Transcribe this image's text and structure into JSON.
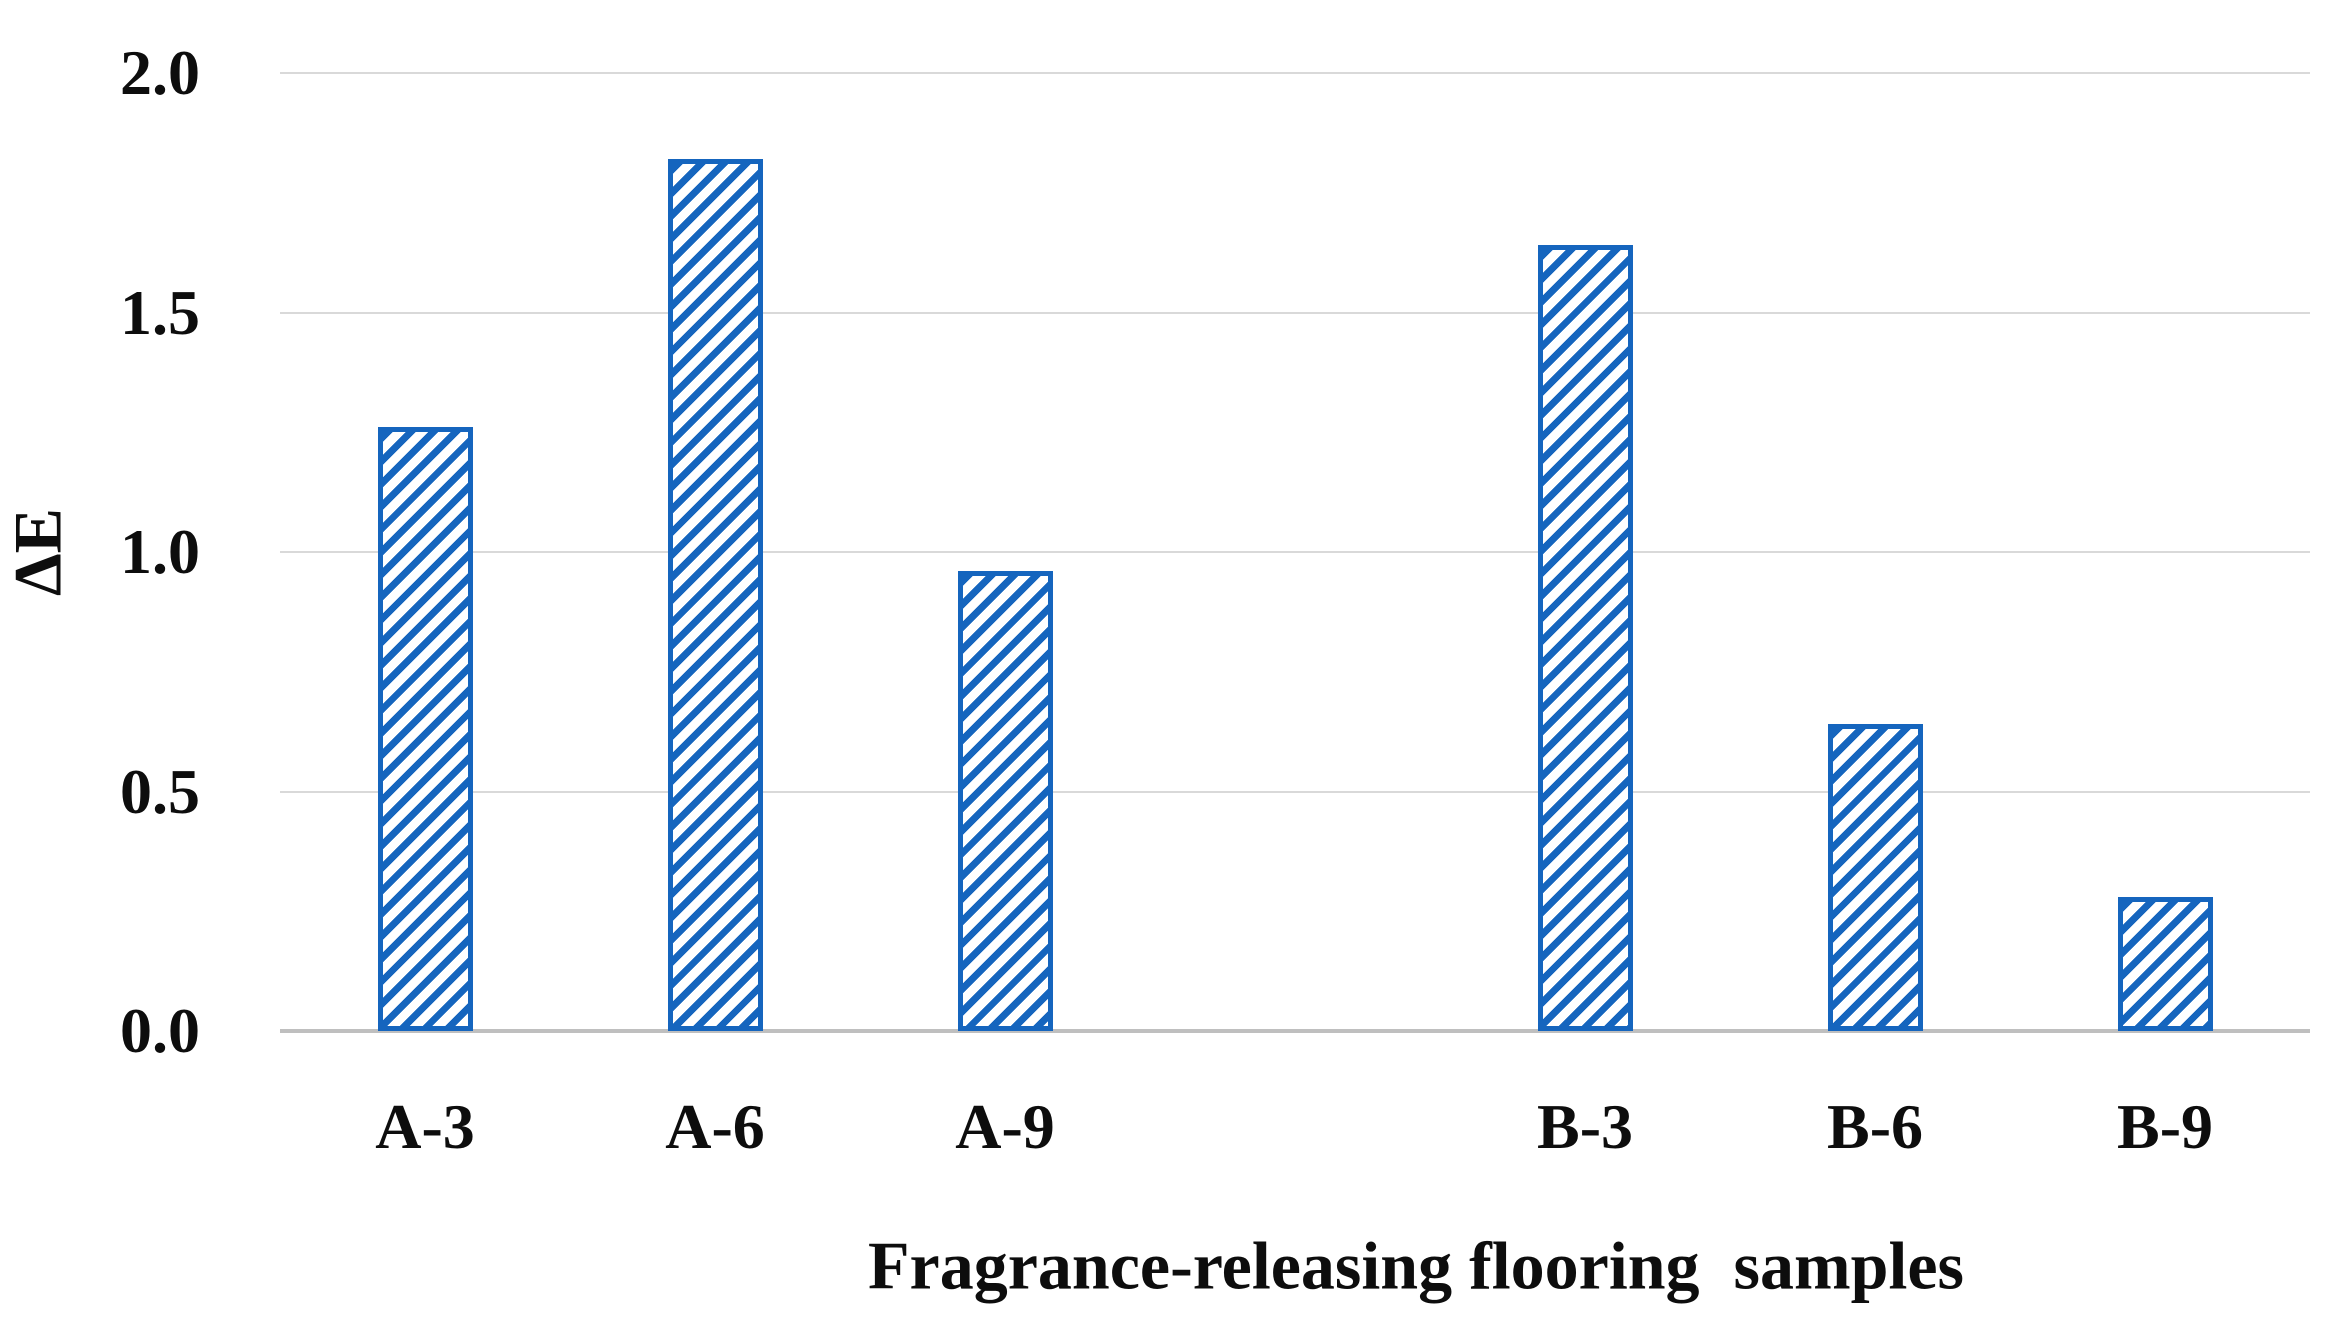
{
  "chart_data": {
    "type": "bar",
    "title": "",
    "xlabel": "Fragrance-releasing flooring  samples",
    "ylabel": "ΔE",
    "categories": [
      "A-3",
      "A-6",
      "A-9",
      "B-3",
      "B-6",
      "B-9"
    ],
    "values": [
      1.26,
      1.82,
      0.96,
      1.64,
      0.64,
      0.28
    ],
    "group_gap_after_index": 2,
    "slots": [
      0,
      1,
      2,
      4,
      5,
      6
    ],
    "n_slots": 7,
    "ylim": [
      0.0,
      2.0
    ],
    "yticks": [
      0.0,
      0.5,
      1.0,
      1.5,
      2.0
    ],
    "ytick_labels": [
      "0.0",
      "0.5",
      "1.0",
      "1.5",
      "2.0"
    ],
    "grid": true,
    "legend": false,
    "bar_fill_style": "diagonal-hatch-forward",
    "bar_color": "#1565be",
    "bar_background": "#ffffff",
    "gridline_color": "#d9d9d9",
    "axis_line_color": "#bfbfbf",
    "text_color": "#0d0d0d"
  }
}
